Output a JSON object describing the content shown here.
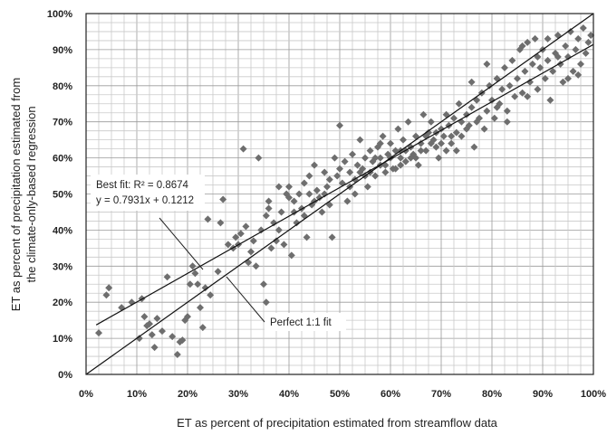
{
  "chart_data": {
    "type": "scatter",
    "title": "",
    "xlabel": "ET as percent of precipitation estimated from streamflow data",
    "ylabel_lines": [
      "ET as percent of precipitation estimated  from",
      "the climate-only-based regression"
    ],
    "xlim": [
      0,
      1
    ],
    "ylim": [
      0,
      1
    ],
    "x_ticks": [
      "0%",
      "10%",
      "20%",
      "30%",
      "40%",
      "50%",
      "60%",
      "70%",
      "80%",
      "90%",
      "100%"
    ],
    "y_ticks": [
      "0%",
      "10%",
      "20%",
      "30%",
      "40%",
      "50%",
      "60%",
      "70%",
      "80%",
      "90%",
      "100%"
    ],
    "grid": true,
    "marker": "diamond",
    "marker_color": "#6e6e6e",
    "lines": [
      {
        "label": "Perfect 1:1 fit",
        "slope": 1.0,
        "intercept": 0.0,
        "x_range": [
          0,
          1
        ]
      },
      {
        "label": "Best fit",
        "slope": 0.7931,
        "intercept": 0.1212,
        "x_range": [
          0.02,
          1
        ]
      }
    ],
    "annotations": {
      "best_fit_line1": "Best fit:  R² = 0.8674",
      "best_fit_line2": "y = 0.7931x + 0.1212",
      "perfect_fit": "Perfect 1:1 fit"
    },
    "points": [
      [
        0.025,
        0.115
      ],
      [
        0.04,
        0.22
      ],
      [
        0.045,
        0.24
      ],
      [
        0.07,
        0.185
      ],
      [
        0.09,
        0.2
      ],
      [
        0.105,
        0.1
      ],
      [
        0.11,
        0.21
      ],
      [
        0.115,
        0.16
      ],
      [
        0.12,
        0.135
      ],
      [
        0.125,
        0.14
      ],
      [
        0.13,
        0.11
      ],
      [
        0.135,
        0.075
      ],
      [
        0.14,
        0.155
      ],
      [
        0.15,
        0.12
      ],
      [
        0.16,
        0.27
      ],
      [
        0.17,
        0.105
      ],
      [
        0.18,
        0.055
      ],
      [
        0.185,
        0.09
      ],
      [
        0.19,
        0.095
      ],
      [
        0.195,
        0.15
      ],
      [
        0.2,
        0.16
      ],
      [
        0.205,
        0.25
      ],
      [
        0.21,
        0.3
      ],
      [
        0.215,
        0.28
      ],
      [
        0.22,
        0.25
      ],
      [
        0.225,
        0.185
      ],
      [
        0.23,
        0.13
      ],
      [
        0.235,
        0.24
      ],
      [
        0.24,
        0.43
      ],
      [
        0.245,
        0.22
      ],
      [
        0.26,
        0.285
      ],
      [
        0.265,
        0.42
      ],
      [
        0.27,
        0.485
      ],
      [
        0.28,
        0.36
      ],
      [
        0.29,
        0.35
      ],
      [
        0.295,
        0.38
      ],
      [
        0.3,
        0.36
      ],
      [
        0.305,
        0.39
      ],
      [
        0.31,
        0.625
      ],
      [
        0.315,
        0.41
      ],
      [
        0.32,
        0.31
      ],
      [
        0.325,
        0.34
      ],
      [
        0.33,
        0.37
      ],
      [
        0.335,
        0.3
      ],
      [
        0.34,
        0.6
      ],
      [
        0.345,
        0.4
      ],
      [
        0.35,
        0.25
      ],
      [
        0.355,
        0.2
      ],
      [
        0.355,
        0.44
      ],
      [
        0.36,
        0.48
      ],
      [
        0.365,
        0.35
      ],
      [
        0.37,
        0.42
      ],
      [
        0.375,
        0.37
      ],
      [
        0.38,
        0.4
      ],
      [
        0.385,
        0.45
      ],
      [
        0.39,
        0.36
      ],
      [
        0.395,
        0.5
      ],
      [
        0.4,
        0.49
      ],
      [
        0.4,
        0.52
      ],
      [
        0.405,
        0.33
      ],
      [
        0.41,
        0.48
      ],
      [
        0.415,
        0.42
      ],
      [
        0.42,
        0.5
      ],
      [
        0.425,
        0.46
      ],
      [
        0.43,
        0.53
      ],
      [
        0.435,
        0.38
      ],
      [
        0.44,
        0.55
      ],
      [
        0.445,
        0.47
      ],
      [
        0.45,
        0.58
      ],
      [
        0.455,
        0.51
      ],
      [
        0.46,
        0.49
      ],
      [
        0.465,
        0.45
      ],
      [
        0.47,
        0.56
      ],
      [
        0.475,
        0.52
      ],
      [
        0.48,
        0.54
      ],
      [
        0.485,
        0.38
      ],
      [
        0.49,
        0.6
      ],
      [
        0.495,
        0.55
      ],
      [
        0.5,
        0.57
      ],
      [
        0.5,
        0.69
      ],
      [
        0.505,
        0.53
      ],
      [
        0.51,
        0.59
      ],
      [
        0.515,
        0.48
      ],
      [
        0.52,
        0.56
      ],
      [
        0.525,
        0.61
      ],
      [
        0.53,
        0.54
      ],
      [
        0.535,
        0.58
      ],
      [
        0.54,
        0.65
      ],
      [
        0.545,
        0.57
      ],
      [
        0.55,
        0.6
      ],
      [
        0.555,
        0.52
      ],
      [
        0.56,
        0.62
      ],
      [
        0.565,
        0.59
      ],
      [
        0.57,
        0.55
      ],
      [
        0.575,
        0.63
      ],
      [
        0.58,
        0.6
      ],
      [
        0.585,
        0.66
      ],
      [
        0.59,
        0.58
      ],
      [
        0.595,
        0.61
      ],
      [
        0.6,
        0.64
      ],
      [
        0.605,
        0.57
      ],
      [
        0.61,
        0.62
      ],
      [
        0.615,
        0.68
      ],
      [
        0.62,
        0.6
      ],
      [
        0.625,
        0.65
      ],
      [
        0.63,
        0.59
      ],
      [
        0.635,
        0.7
      ],
      [
        0.64,
        0.63
      ],
      [
        0.645,
        0.61
      ],
      [
        0.65,
        0.66
      ],
      [
        0.655,
        0.58
      ],
      [
        0.66,
        0.64
      ],
      [
        0.665,
        0.72
      ],
      [
        0.67,
        0.62
      ],
      [
        0.675,
        0.67
      ],
      [
        0.68,
        0.7
      ],
      [
        0.685,
        0.65
      ],
      [
        0.69,
        0.63
      ],
      [
        0.695,
        0.6
      ],
      [
        0.7,
        0.68
      ],
      [
        0.705,
        0.66
      ],
      [
        0.71,
        0.62
      ],
      [
        0.715,
        0.69
      ],
      [
        0.72,
        0.64
      ],
      [
        0.725,
        0.71
      ],
      [
        0.73,
        0.67
      ],
      [
        0.735,
        0.75
      ],
      [
        0.74,
        0.66
      ],
      [
        0.75,
        0.72
      ],
      [
        0.755,
        0.69
      ],
      [
        0.76,
        0.74
      ],
      [
        0.765,
        0.63
      ],
      [
        0.77,
        0.76
      ],
      [
        0.775,
        0.71
      ],
      [
        0.78,
        0.78
      ],
      [
        0.785,
        0.68
      ],
      [
        0.79,
        0.73
      ],
      [
        0.795,
        0.8
      ],
      [
        0.8,
        0.76
      ],
      [
        0.805,
        0.71
      ],
      [
        0.81,
        0.82
      ],
      [
        0.815,
        0.75
      ],
      [
        0.82,
        0.79
      ],
      [
        0.825,
        0.85
      ],
      [
        0.83,
        0.73
      ],
      [
        0.835,
        0.8
      ],
      [
        0.84,
        0.87
      ],
      [
        0.845,
        0.77
      ],
      [
        0.85,
        0.82
      ],
      [
        0.855,
        0.9
      ],
      [
        0.86,
        0.78
      ],
      [
        0.865,
        0.84
      ],
      [
        0.87,
        0.92
      ],
      [
        0.875,
        0.81
      ],
      [
        0.88,
        0.86
      ],
      [
        0.885,
        0.93
      ],
      [
        0.89,
        0.79
      ],
      [
        0.895,
        0.85
      ],
      [
        0.9,
        0.9
      ],
      [
        0.905,
        0.82
      ],
      [
        0.91,
        0.87
      ],
      [
        0.915,
        0.76
      ],
      [
        0.92,
        0.84
      ],
      [
        0.925,
        0.89
      ],
      [
        0.93,
        0.94
      ],
      [
        0.935,
        0.86
      ],
      [
        0.94,
        0.81
      ],
      [
        0.945,
        0.91
      ],
      [
        0.95,
        0.88
      ],
      [
        0.955,
        0.95
      ],
      [
        0.96,
        0.84
      ],
      [
        0.965,
        0.9
      ],
      [
        0.97,
        0.93
      ],
      [
        0.975,
        0.86
      ],
      [
        0.98,
        0.96
      ],
      [
        0.985,
        0.89
      ],
      [
        0.99,
        0.92
      ],
      [
        0.995,
        0.94
      ],
      [
        0.52,
        0.52
      ],
      [
        0.54,
        0.56
      ],
      [
        0.56,
        0.56
      ],
      [
        0.58,
        0.58
      ],
      [
        0.6,
        0.6
      ],
      [
        0.62,
        0.62
      ],
      [
        0.64,
        0.6
      ],
      [
        0.66,
        0.62
      ],
      [
        0.68,
        0.64
      ],
      [
        0.7,
        0.64
      ],
      [
        0.72,
        0.66
      ],
      [
        0.74,
        0.7
      ],
      [
        0.47,
        0.5
      ],
      [
        0.48,
        0.47
      ],
      [
        0.43,
        0.44
      ],
      [
        0.44,
        0.5
      ],
      [
        0.58,
        0.64
      ],
      [
        0.61,
        0.57
      ],
      [
        0.63,
        0.62
      ],
      [
        0.67,
        0.66
      ],
      [
        0.69,
        0.67
      ],
      [
        0.71,
        0.72
      ],
      [
        0.57,
        0.6
      ],
      [
        0.59,
        0.56
      ],
      [
        0.62,
        0.58
      ],
      [
        0.65,
        0.6
      ],
      [
        0.53,
        0.5
      ],
      [
        0.55,
        0.55
      ],
      [
        0.45,
        0.48
      ],
      [
        0.41,
        0.45
      ],
      [
        0.38,
        0.52
      ],
      [
        0.36,
        0.46
      ],
      [
        0.73,
        0.62
      ],
      [
        0.77,
        0.7
      ],
      [
        0.81,
        0.74
      ],
      [
        0.83,
        0.7
      ],
      [
        0.87,
        0.77
      ],
      [
        0.89,
        0.88
      ],
      [
        0.91,
        0.93
      ],
      [
        0.93,
        0.88
      ],
      [
        0.95,
        0.82
      ],
      [
        0.97,
        0.83
      ],
      [
        0.79,
        0.86
      ],
      [
        0.76,
        0.81
      ],
      [
        0.75,
        0.68
      ],
      [
        0.86,
        0.91
      ]
    ]
  }
}
